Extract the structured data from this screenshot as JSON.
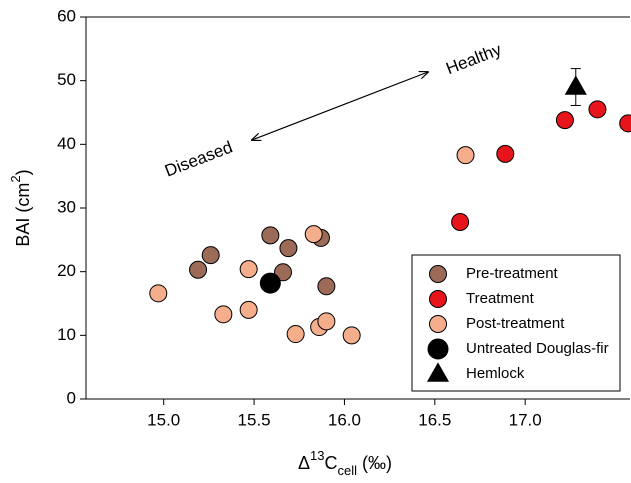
{
  "chart_data": {
    "type": "scatter",
    "x_label": [
      "Δ",
      "13",
      "C",
      "cell",
      " (‰)"
    ],
    "y_label": [
      "BAI (cm",
      "2",
      ")"
    ],
    "annotations": [
      "Healthy",
      "Diseased"
    ],
    "xlim": [
      14.57,
      17.58
    ],
    "ylim": [
      0,
      60
    ],
    "xticks": [
      {
        "value": 15,
        "label": "15.0"
      },
      {
        "value": 15.5,
        "label": "15.5"
      },
      {
        "value": 16,
        "label": "16.0"
      },
      {
        "value": 16.5,
        "label": "16.5"
      },
      {
        "value": 17,
        "label": "17.0"
      }
    ],
    "yticks": [
      0,
      10,
      20,
      30,
      40,
      50,
      60
    ],
    "series": [
      {
        "name": "Pre-treatment",
        "color": "#9b6b58",
        "marker": "circle",
        "x": [
          15.19,
          15.26,
          15.59,
          15.69,
          15.66,
          15.87,
          15.9
        ],
        "values": [
          20.3,
          22.6,
          25.7,
          23.7,
          19.9,
          25.3,
          17.7
        ]
      },
      {
        "name": "Treatment",
        "color": "#e8141b",
        "marker": "circle",
        "x": [
          16.64,
          16.89,
          17.22,
          17.4,
          17.57
        ],
        "values": [
          27.8,
          38.5,
          43.8,
          45.5,
          43.3
        ]
      },
      {
        "name": "Post-treatment",
        "color": "#f5ae8c",
        "marker": "circle",
        "x": [
          14.97,
          15.33,
          15.47,
          15.47,
          15.73,
          15.83,
          15.86,
          15.9,
          16.04,
          16.67
        ],
        "values": [
          16.6,
          13.3,
          14.0,
          20.4,
          10.2,
          25.9,
          11.3,
          12.2,
          10.0,
          38.3
        ]
      },
      {
        "name": "Untreated Douglas-fir",
        "color": "#000000",
        "marker": "circle",
        "x": [
          15.59
        ],
        "values": [
          18.2
        ]
      },
      {
        "name": "Hemlock",
        "color": "#000000",
        "marker": "triangle",
        "x": [
          17.28
        ],
        "values": [
          49.0
        ],
        "errors": [
          2.9
        ]
      }
    ]
  }
}
